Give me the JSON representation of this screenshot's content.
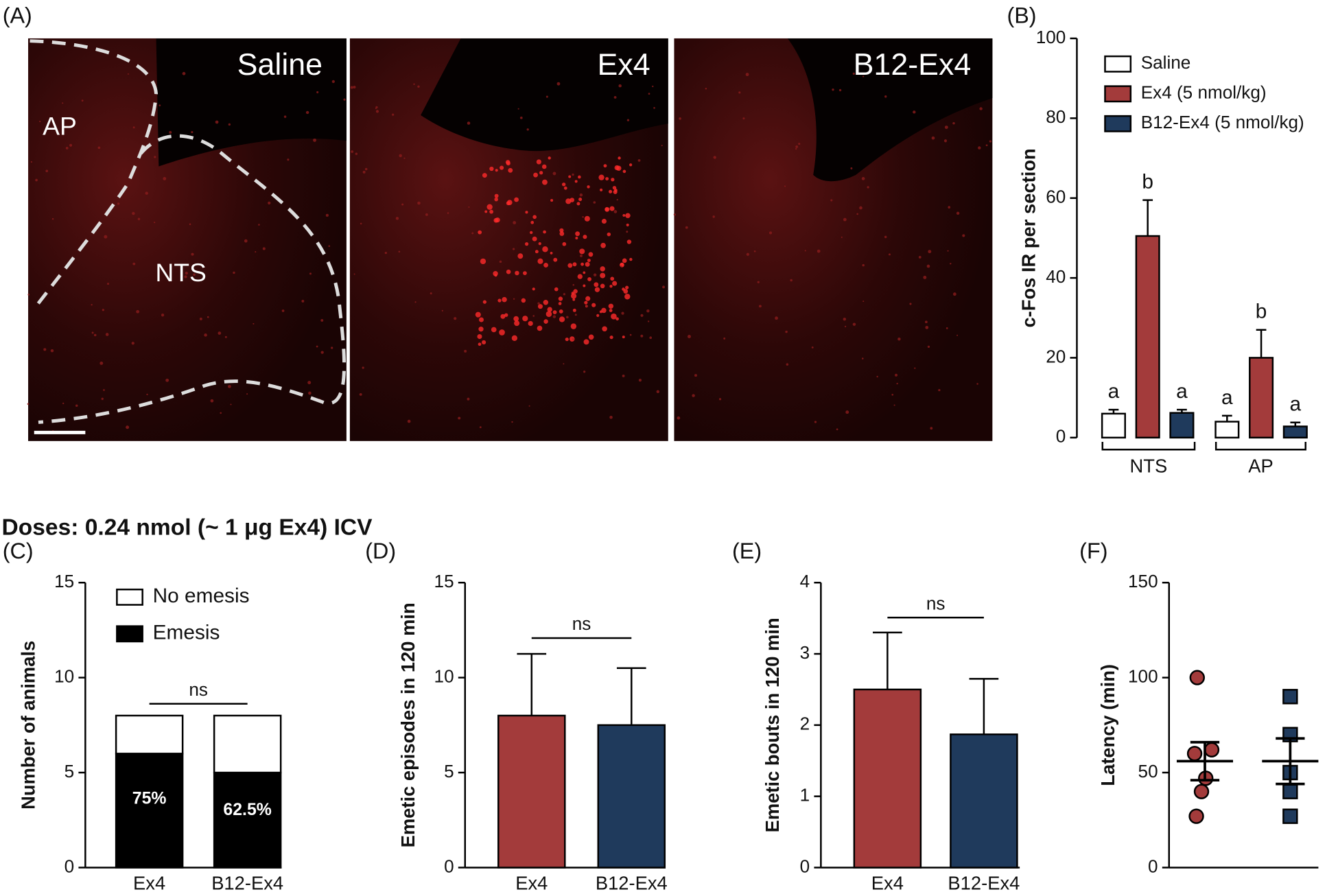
{
  "heading": "Doses: 0.24 nmol (~ 1 μg Ex4) ICV",
  "chart_data": [
    {
      "type": "image",
      "label": "(A)",
      "panels": [
        "Saline",
        "Ex4",
        "B12-Ex4"
      ],
      "regions": [
        "AP",
        "NTS"
      ]
    },
    {
      "type": "bar",
      "label": "(B)",
      "ylabel": "c-Fos IR per section",
      "categories": [
        "NTS",
        "AP"
      ],
      "ylim": [
        0,
        100
      ],
      "yticks": [
        0,
        20,
        40,
        60,
        80,
        100
      ],
      "series": [
        {
          "name": "Saline",
          "color": "#ffffff",
          "values": [
            6,
            4
          ],
          "errors": [
            1,
            1.5
          ],
          "letters": [
            "a",
            "a"
          ]
        },
        {
          "name": "Ex4 (5 nmol/kg)",
          "color": "#a33b3b",
          "values": [
            50.5,
            20
          ],
          "errors": [
            9,
            7
          ],
          "letters": [
            "b",
            "b"
          ]
        },
        {
          "name": "B12-Ex4 (5 nmol/kg)",
          "color": "#1f3a5c",
          "values": [
            6.2,
            2.8
          ],
          "errors": [
            0.8,
            1
          ],
          "letters": [
            "a",
            "a"
          ]
        }
      ]
    },
    {
      "type": "stacked_bar",
      "label": "(C)",
      "ylabel": "Number of animals",
      "categories": [
        "Ex4",
        "B12-Ex4"
      ],
      "ylim": [
        0,
        15
      ],
      "yticks": [
        0,
        5,
        10,
        15
      ],
      "annotation": "ns",
      "series": [
        {
          "name": "Emesis",
          "color": "#000000",
          "values": [
            6,
            5
          ],
          "segment_labels": [
            "75%",
            "62.5%"
          ]
        },
        {
          "name": "No emesis",
          "color": "#ffffff",
          "values": [
            2,
            3
          ]
        }
      ]
    },
    {
      "type": "bar",
      "label": "(D)",
      "ylabel": "Emetic episodes in 120 min",
      "categories": [
        "Ex4",
        "B12-Ex4"
      ],
      "ylim": [
        0,
        15
      ],
      "yticks": [
        0,
        5,
        10,
        15
      ],
      "annotation": "ns",
      "series": [
        {
          "colors": [
            "#a33b3b",
            "#1f3a5c"
          ],
          "values": [
            8,
            7.5
          ],
          "errors": [
            3.25,
            3
          ]
        }
      ]
    },
    {
      "type": "bar",
      "label": "(E)",
      "ylabel": "Emetic bouts in 120 min",
      "categories": [
        "Ex4",
        "B12-Ex4"
      ],
      "ylim": [
        0,
        4
      ],
      "yticks": [
        0,
        1,
        2,
        3,
        4
      ],
      "annotation": "ns",
      "series": [
        {
          "colors": [
            "#a33b3b",
            "#1f3a5c"
          ],
          "values": [
            2.5,
            1.87
          ],
          "errors": [
            0.8,
            0.78
          ]
        }
      ]
    },
    {
      "type": "scatter",
      "label": "(F)",
      "ylabel": "Latency (min)",
      "ylim": [
        0,
        150
      ],
      "yticks": [
        0,
        50,
        100,
        150
      ],
      "series": [
        {
          "marker": "circle",
          "color": "#a33b3b",
          "values": [
            100,
            62,
            60,
            47,
            40,
            27
          ],
          "mean": 56,
          "sem": 10
        },
        {
          "marker": "square",
          "color": "#1f3a5c",
          "values": [
            90,
            70,
            50,
            40,
            27
          ],
          "mean": 56,
          "sem": 12
        }
      ]
    }
  ]
}
